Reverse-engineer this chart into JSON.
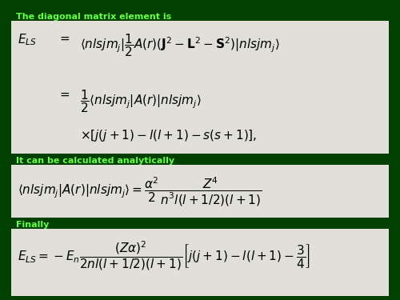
{
  "background_color": "#004000",
  "box_color": "#e0e0d8",
  "text_color_green": "#66ff44",
  "label1": "The diagonal matrix element is",
  "label2": "It can be calculated analytically",
  "label3": "Finally"
}
